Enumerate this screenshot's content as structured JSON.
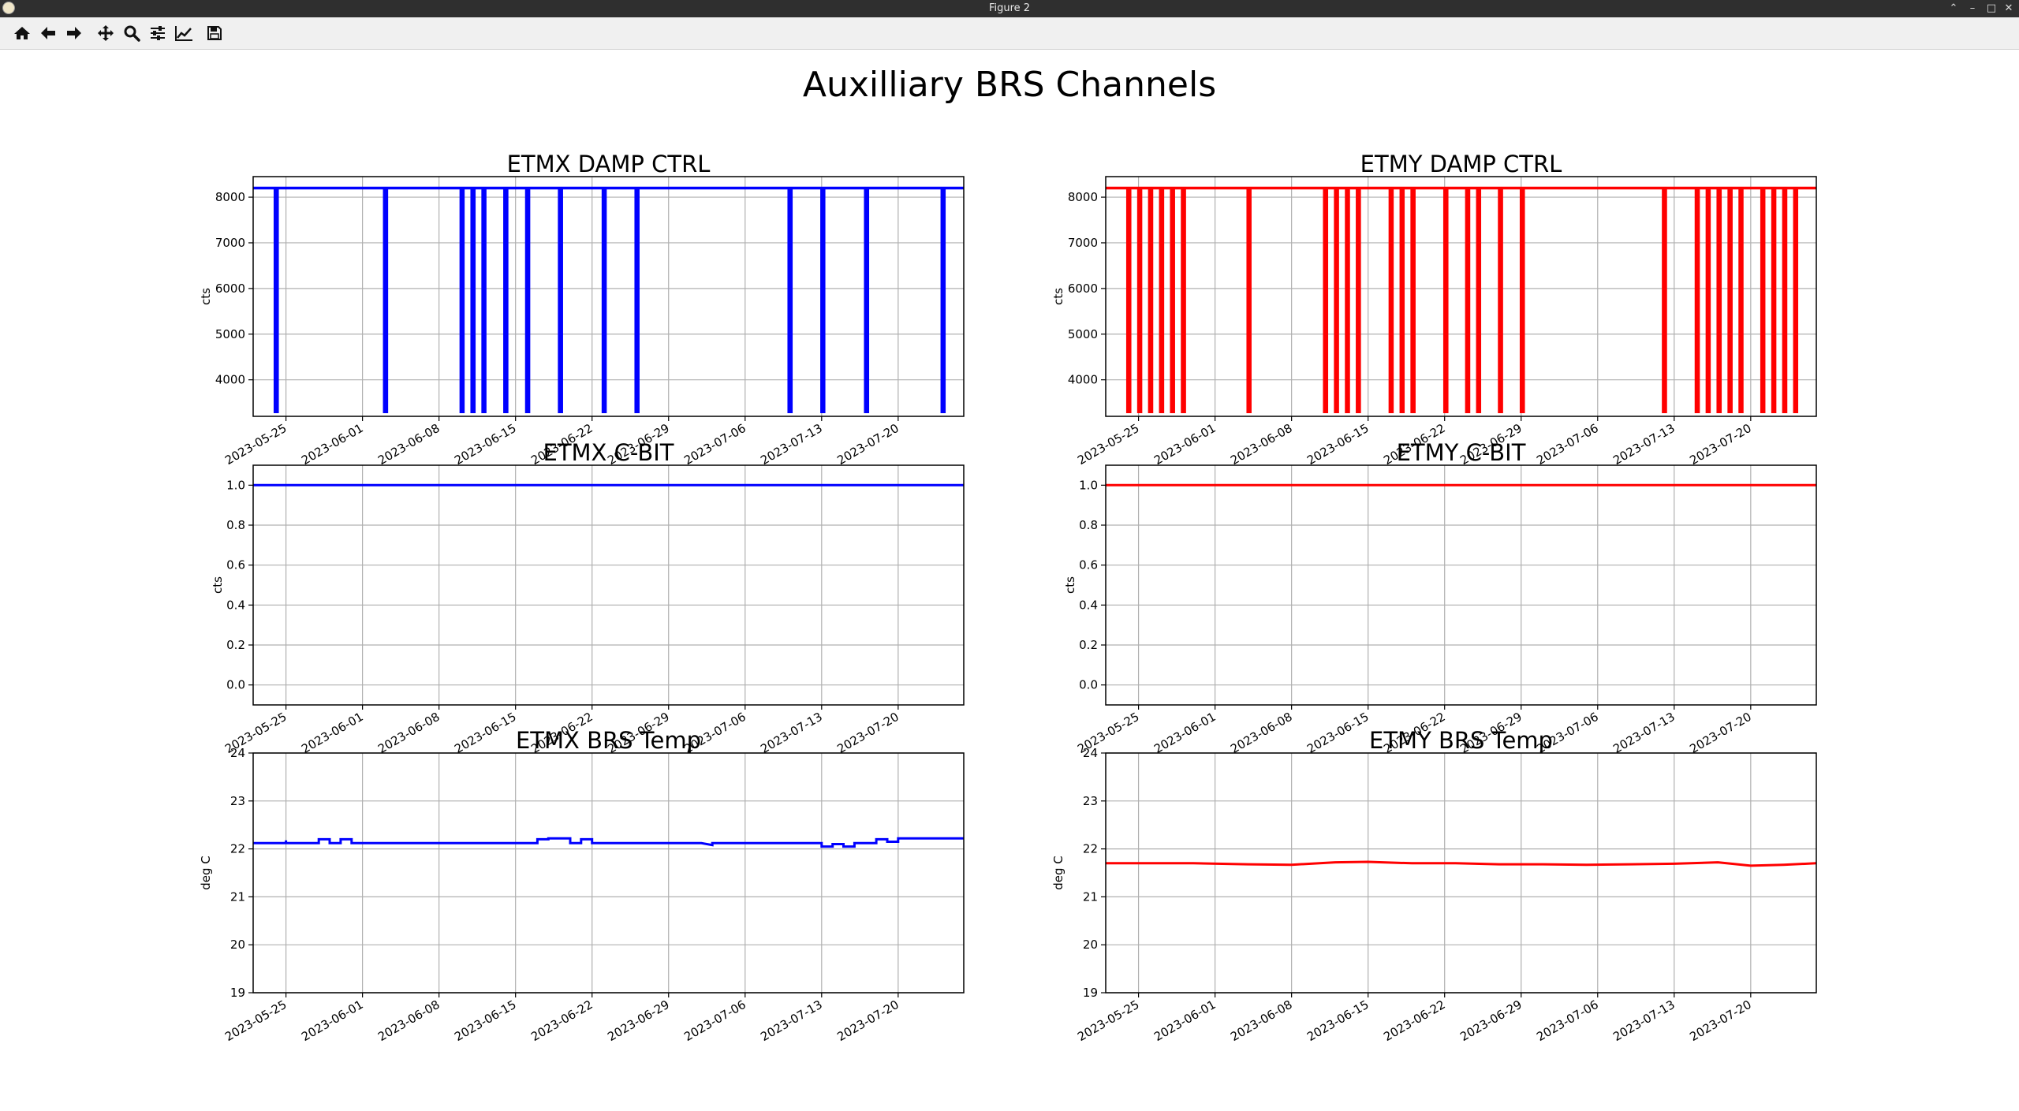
{
  "window": {
    "title": "Figure 2",
    "controls": [
      "chevron-up-icon",
      "minimize-icon",
      "maximize-icon",
      "close-icon"
    ]
  },
  "toolbar": {
    "buttons": [
      {
        "name": "home",
        "icon": "home-icon"
      },
      {
        "name": "back",
        "icon": "arrow-left-icon"
      },
      {
        "name": "forward",
        "icon": "arrow-right-icon"
      },
      {
        "name": "pan",
        "icon": "move-icon"
      },
      {
        "name": "zoom",
        "icon": "magnifier-icon"
      },
      {
        "name": "configure-subplots",
        "icon": "sliders-icon"
      },
      {
        "name": "edit-axis",
        "icon": "line-chart-icon"
      },
      {
        "name": "save",
        "icon": "floppy-disk-icon"
      }
    ]
  },
  "figure": {
    "suptitle": "Auxilliary BRS Channels",
    "date_ticks": [
      "2023-05-25",
      "2023-06-01",
      "2023-06-08",
      "2023-06-15",
      "2023-06-22",
      "2023-06-29",
      "2023-07-06",
      "2023-07-13",
      "2023-07-20"
    ],
    "colors": {
      "etmx": "#0000ff",
      "etmy": "#ff0000",
      "grid": "#b0b0b0",
      "axes": "#000000"
    }
  },
  "chart_data": [
    {
      "type": "line",
      "title": "ETMX DAMP CTRL",
      "ylabel": "cts",
      "color": "#0000ff",
      "xlim": [
        "2023-05-22",
        "2023-07-26"
      ],
      "ylim": [
        3200,
        8450
      ],
      "yticks": [
        4000,
        5000,
        6000,
        7000,
        8000
      ],
      "grid": true,
      "series": [
        {
          "baseline": 8200,
          "drop_value": 3300,
          "drops": [
            "2023-05-24",
            "2023-06-03",
            "2023-06-10",
            "2023-06-10",
            "2023-06-11",
            "2023-06-12",
            "2023-06-14",
            "2023-06-16",
            "2023-06-16",
            "2023-06-19",
            "2023-06-23",
            "2023-06-26",
            "2023-07-10",
            "2023-07-13",
            "2023-07-17",
            "2023-07-17",
            "2023-07-17",
            "2023-07-24"
          ]
        }
      ]
    },
    {
      "type": "line",
      "title": "ETMY DAMP CTRL",
      "ylabel": "cts",
      "color": "#ff0000",
      "xlim": [
        "2023-05-22",
        "2023-07-26"
      ],
      "ylim": [
        3200,
        8450
      ],
      "yticks": [
        4000,
        5000,
        6000,
        7000,
        8000
      ],
      "grid": true,
      "series": [
        {
          "baseline": 8200,
          "drop_value": 3300,
          "drops": [
            "2023-05-24",
            "2023-05-25",
            "2023-05-26",
            "2023-05-27",
            "2023-05-27",
            "2023-05-28",
            "2023-05-28",
            "2023-05-29",
            "2023-06-04",
            "2023-06-11",
            "2023-06-12",
            "2023-06-12",
            "2023-06-13",
            "2023-06-13",
            "2023-06-14",
            "2023-06-17",
            "2023-06-18",
            "2023-06-19",
            "2023-06-22",
            "2023-06-24",
            "2023-06-24",
            "2023-06-25",
            "2023-06-27",
            "2023-06-29",
            "2023-06-29",
            "2023-07-12",
            "2023-07-15",
            "2023-07-16",
            "2023-07-17",
            "2023-07-18",
            "2023-07-19",
            "2023-07-21",
            "2023-07-22",
            "2023-07-23",
            "2023-07-24",
            "2023-07-24",
            "2023-07-24"
          ]
        }
      ]
    },
    {
      "type": "line",
      "title": "ETMX C-BIT",
      "ylabel": "cts",
      "color": "#0000ff",
      "xlim": [
        "2023-05-22",
        "2023-07-26"
      ],
      "ylim": [
        -0.1,
        1.1
      ],
      "yticks": [
        0.0,
        0.2,
        0.4,
        0.6,
        0.8,
        1.0
      ],
      "grid": true,
      "series": [
        {
          "x": [
            "2023-05-22",
            "2023-07-26"
          ],
          "y": [
            1.0,
            1.0
          ]
        }
      ]
    },
    {
      "type": "line",
      "title": "ETMY C-BIT",
      "ylabel": "cts",
      "color": "#ff0000",
      "xlim": [
        "2023-05-22",
        "2023-07-26"
      ],
      "ylim": [
        -0.1,
        1.1
      ],
      "yticks": [
        0.0,
        0.2,
        0.4,
        0.6,
        0.8,
        1.0
      ],
      "grid": true,
      "series": [
        {
          "x": [
            "2023-05-22",
            "2023-07-26"
          ],
          "y": [
            1.0,
            1.0
          ]
        }
      ]
    },
    {
      "type": "line",
      "title": "ETMX BRS Temp",
      "ylabel": "deg C",
      "color": "#0000ff",
      "xlim": [
        "2023-05-22",
        "2023-07-26"
      ],
      "ylim": [
        19,
        24
      ],
      "yticks": [
        19,
        20,
        21,
        22,
        23,
        24
      ],
      "grid": true,
      "series": [
        {
          "x": [
            "2023-05-22",
            "2023-05-25",
            "2023-05-25",
            "2023-05-25",
            "2023-05-28",
            "2023-05-28",
            "2023-05-29",
            "2023-05-29",
            "2023-05-30",
            "2023-05-30",
            "2023-05-31",
            "2023-05-31",
            "2023-06-01",
            "2023-06-17",
            "2023-06-17",
            "2023-06-18",
            "2023-06-18",
            "2023-06-20",
            "2023-06-20",
            "2023-06-21",
            "2023-06-21",
            "2023-06-22",
            "2023-06-22",
            "2023-07-02",
            "2023-07-03",
            "2023-07-03",
            "2023-07-04",
            "2023-07-13",
            "2023-07-13",
            "2023-07-14",
            "2023-07-14",
            "2023-07-15",
            "2023-07-15",
            "2023-07-16",
            "2023-07-16",
            "2023-07-18",
            "2023-07-18",
            "2023-07-19",
            "2023-07-19",
            "2023-07-20",
            "2023-07-20",
            "2023-07-26"
          ],
          "y": [
            22.12,
            22.12,
            22.18,
            22.12,
            22.12,
            22.2,
            22.2,
            22.12,
            22.12,
            22.2,
            22.2,
            22.12,
            22.12,
            22.12,
            22.2,
            22.2,
            22.22,
            22.22,
            22.12,
            22.12,
            22.2,
            22.2,
            22.12,
            22.12,
            22.08,
            22.12,
            22.12,
            22.12,
            22.05,
            22.05,
            22.1,
            22.1,
            22.05,
            22.05,
            22.12,
            22.12,
            22.2,
            22.2,
            22.15,
            22.15,
            22.22,
            22.22
          ]
        }
      ]
    },
    {
      "type": "line",
      "title": "ETMY BRS Temp",
      "ylabel": "deg C",
      "color": "#ff0000",
      "xlim": [
        "2023-05-22",
        "2023-07-26"
      ],
      "ylim": [
        19,
        24
      ],
      "yticks": [
        19,
        20,
        21,
        22,
        23,
        24
      ],
      "grid": true,
      "series": [
        {
          "x": [
            "2023-05-22",
            "2023-05-26",
            "2023-05-30",
            "2023-06-04",
            "2023-06-08",
            "2023-06-12",
            "2023-06-15",
            "2023-06-19",
            "2023-06-23",
            "2023-06-27",
            "2023-07-01",
            "2023-07-05",
            "2023-07-09",
            "2023-07-13",
            "2023-07-17",
            "2023-07-20",
            "2023-07-23",
            "2023-07-26"
          ],
          "y": [
            21.7,
            21.7,
            21.7,
            21.68,
            21.67,
            21.72,
            21.73,
            21.7,
            21.7,
            21.68,
            21.68,
            21.67,
            21.68,
            21.69,
            21.72,
            21.65,
            21.67,
            21.7
          ]
        }
      ]
    }
  ]
}
